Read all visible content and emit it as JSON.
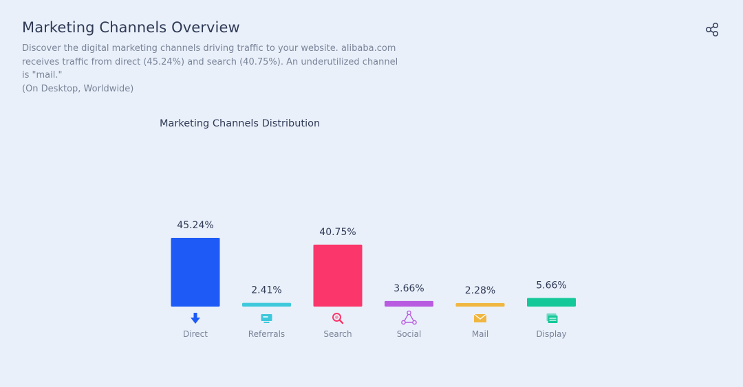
{
  "header": {
    "title": "Marketing Channels Overview",
    "description_lines": [
      "Discover the digital marketing channels driving traffic to your website. alibaba.com",
      "receives traffic from direct (45.24%) and search (40.75%). An underutilized channel",
      "is \"mail.\"",
      "(On Desktop, Worldwide)"
    ],
    "share_icon": "share-icon"
  },
  "chart_data": {
    "type": "bar",
    "title": "Marketing Channels Distribution",
    "categories": [
      "Direct",
      "Referrals",
      "Search",
      "Social",
      "Mail",
      "Display"
    ],
    "values": [
      45.24,
      2.41,
      40.75,
      3.66,
      2.28,
      5.66
    ],
    "value_labels": [
      "45.24%",
      "2.41%",
      "40.75%",
      "3.66%",
      "2.28%",
      "5.66%"
    ],
    "colors": [
      "#1e5bf6",
      "#3ec8dc",
      "#fb366a",
      "#b85be0",
      "#f0b63f",
      "#14c899"
    ],
    "icons": [
      "direct-arrow-icon",
      "referrals-monitor-icon",
      "search-magnifier-icon",
      "social-share-icon",
      "mail-envelope-icon",
      "display-screen-icon"
    ],
    "unit": "%",
    "ylim": [
      0,
      45.24
    ],
    "grid": false,
    "legend": "none"
  }
}
